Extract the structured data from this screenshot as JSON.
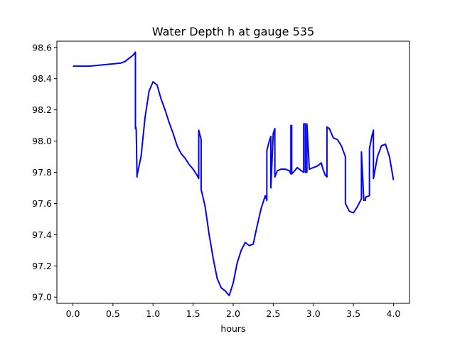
{
  "chart_data": {
    "type": "line",
    "title": "Water Depth h at gauge 535",
    "xlabel": "hours",
    "ylabel": "",
    "xlim": [
      -0.2,
      4.2
    ],
    "ylim": [
      96.96,
      98.64
    ],
    "xticks": [
      0.0,
      0.5,
      1.0,
      1.5,
      2.0,
      2.5,
      3.0,
      3.5,
      4.0
    ],
    "xtick_labels": [
      "0.0",
      "0.5",
      "1.0",
      "1.5",
      "2.0",
      "2.5",
      "3.0",
      "3.5",
      "4.0"
    ],
    "yticks": [
      97.0,
      97.2,
      97.4,
      97.6,
      97.8,
      98.0,
      98.2,
      98.4,
      98.6
    ],
    "ytick_labels": [
      "97.0",
      "97.2",
      "97.4",
      "97.6",
      "97.8",
      "98.0",
      "98.2",
      "98.4",
      "98.6"
    ],
    "grid": false,
    "series": [
      {
        "color": "#0000ff",
        "x": [
          0.0,
          0.2,
          0.4,
          0.6,
          0.65,
          0.7,
          0.75,
          0.78,
          0.78,
          0.785,
          0.79,
          0.8,
          0.8,
          0.85,
          0.9,
          0.95,
          1.0,
          1.05,
          1.1,
          1.15,
          1.2,
          1.25,
          1.3,
          1.35,
          1.4,
          1.45,
          1.5,
          1.55,
          1.57,
          1.57,
          1.6,
          1.6,
          1.65,
          1.7,
          1.75,
          1.8,
          1.85,
          1.9,
          1.95,
          2.0,
          2.05,
          2.1,
          2.15,
          2.2,
          2.25,
          2.3,
          2.35,
          2.4,
          2.42,
          2.42,
          2.45,
          2.47,
          2.47,
          2.5,
          2.52,
          2.52,
          2.55,
          2.6,
          2.65,
          2.7,
          2.72,
          2.72,
          2.73,
          2.73,
          2.75,
          2.8,
          2.85,
          2.88,
          2.88,
          2.9,
          2.9,
          2.92,
          2.92,
          2.95,
          3.0,
          3.05,
          3.1,
          3.12,
          3.15,
          3.17,
          3.17,
          3.2,
          3.25,
          3.3,
          3.35,
          3.4,
          3.4,
          3.45,
          3.5,
          3.55,
          3.6,
          3.6,
          3.63,
          3.65,
          3.65,
          3.7,
          3.7,
          3.73,
          3.75,
          3.75,
          3.8,
          3.85,
          3.9,
          3.95,
          4.0
        ],
        "y": [
          98.48,
          98.48,
          98.49,
          98.5,
          98.51,
          98.53,
          98.55,
          98.57,
          98.08,
          98.09,
          98.07,
          97.77,
          97.78,
          97.9,
          98.15,
          98.32,
          98.38,
          98.36,
          98.27,
          98.2,
          98.12,
          98.05,
          97.97,
          97.92,
          97.89,
          97.85,
          97.82,
          97.78,
          97.76,
          98.07,
          98.01,
          97.69,
          97.58,
          97.4,
          97.25,
          97.12,
          97.06,
          97.04,
          97.01,
          97.09,
          97.22,
          97.3,
          97.35,
          97.33,
          97.34,
          97.46,
          97.57,
          97.65,
          97.62,
          97.94,
          98.0,
          98.03,
          97.7,
          98.05,
          98.08,
          97.77,
          97.81,
          97.82,
          97.82,
          97.81,
          97.79,
          98.1,
          98.1,
          97.79,
          97.8,
          97.83,
          97.81,
          97.8,
          98.11,
          98.11,
          97.8,
          97.8,
          98.11,
          97.82,
          97.83,
          97.84,
          97.86,
          97.82,
          97.78,
          97.77,
          98.09,
          98.08,
          98.02,
          98.01,
          97.97,
          97.9,
          97.6,
          97.55,
          97.54,
          97.58,
          97.63,
          97.93,
          97.62,
          97.62,
          97.64,
          97.65,
          97.95,
          98.03,
          98.07,
          97.76,
          97.9,
          97.97,
          97.98,
          97.9,
          97.75
        ]
      }
    ]
  }
}
